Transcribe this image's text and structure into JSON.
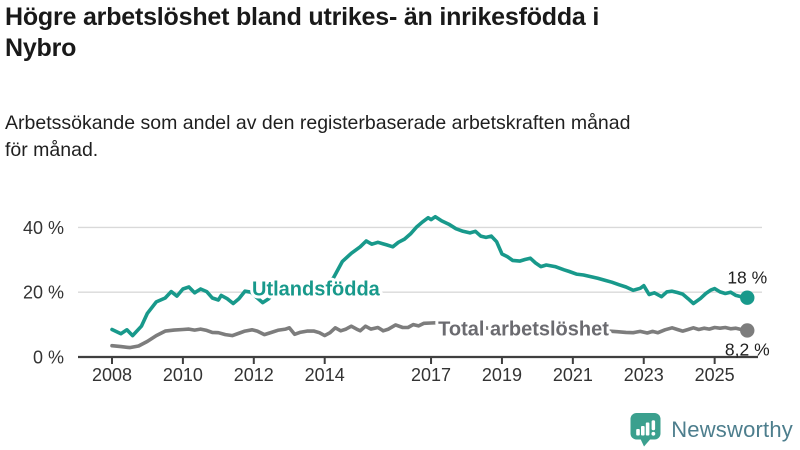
{
  "header": {
    "title_line1": "Högre arbetslöshet bland utrikes- än inrikesfödda i",
    "title_line2": "Nybro",
    "subtitle_line1": "Arbetssökande som andel av den registerbaserade arbetskraften månad",
    "subtitle_line2": "för månad."
  },
  "footer": {
    "brand": "Newsworthy",
    "logo_icon": "speech-bubble-bar-chart-icon"
  },
  "colors": {
    "teal_line": "#18998b",
    "gray_line": "#7d7d7d",
    "gray_label": "#6b6b70",
    "gridline": "#d9d9d9",
    "axis": "#3f3f3f",
    "axis_text": "#333333",
    "annotation_text": "#1f1f1f",
    "logo_teal": "#3ba08e",
    "wordmark": "#4d7e8d"
  },
  "chart_data": {
    "type": "line",
    "title": "Högre arbetslöshet bland utrikes- än inrikesfödda i Nybro",
    "subtitle": "Arbetssökande som andel av den registerbaserade arbetskraften månad för månad.",
    "unit": "%",
    "grid": "horizontal-only",
    "legend_position": "inline-labels",
    "x_axis": {
      "tick_positions": [
        2008,
        2010,
        2012,
        2014,
        2017,
        2019,
        2021,
        2023,
        2025
      ],
      "tick_labels": [
        "2008",
        "2010",
        "2012",
        "2014",
        "2017",
        "2019",
        "2021",
        "2023",
        "2025"
      ],
      "range": [
        2007.05,
        2026.3
      ]
    },
    "y_axis": {
      "tick_positions": [
        0,
        20,
        40
      ],
      "tick_labels": [
        "0 %",
        "20 %",
        "40 %"
      ],
      "range": [
        0,
        45
      ]
    },
    "series": [
      {
        "name": "Utlandsfödda",
        "color": "#18998b",
        "end_label": "18 %",
        "end_label_side": "above",
        "end_value": 18,
        "points": [
          [
            2008.0,
            8.5
          ],
          [
            2008.25,
            7.2
          ],
          [
            2008.42,
            8.4
          ],
          [
            2008.58,
            6.6
          ],
          [
            2008.83,
            9.5
          ],
          [
            2009.0,
            13.5
          ],
          [
            2009.25,
            17.0
          ],
          [
            2009.5,
            18.2
          ],
          [
            2009.67,
            20.2
          ],
          [
            2009.83,
            18.8
          ],
          [
            2010.0,
            21.0
          ],
          [
            2010.17,
            21.6
          ],
          [
            2010.33,
            19.8
          ],
          [
            2010.5,
            21.0
          ],
          [
            2010.67,
            20.2
          ],
          [
            2010.83,
            18.2
          ],
          [
            2011.0,
            17.6
          ],
          [
            2011.08,
            19.0
          ],
          [
            2011.25,
            18.0
          ],
          [
            2011.42,
            16.5
          ],
          [
            2011.58,
            18.0
          ],
          [
            2011.75,
            20.3
          ],
          [
            2011.92,
            20.0
          ],
          [
            2012.08,
            18.4
          ],
          [
            2012.25,
            16.8
          ],
          [
            2012.42,
            18.0
          ],
          [
            2012.58,
            20.0
          ],
          [
            2012.75,
            19.4
          ],
          [
            2012.92,
            21.0
          ],
          [
            2013.08,
            20.4
          ],
          [
            2013.25,
            19.6
          ],
          [
            2013.5,
            19.6
          ],
          [
            2013.75,
            20.2
          ],
          [
            2014.0,
            21.2
          ],
          [
            2014.25,
            24.5
          ],
          [
            2014.5,
            29.5
          ],
          [
            2014.75,
            32.0
          ],
          [
            2015.0,
            34.0
          ],
          [
            2015.17,
            35.8
          ],
          [
            2015.33,
            34.8
          ],
          [
            2015.5,
            35.4
          ],
          [
            2015.75,
            34.6
          ],
          [
            2015.92,
            34.0
          ],
          [
            2016.08,
            35.4
          ],
          [
            2016.25,
            36.4
          ],
          [
            2016.42,
            38.0
          ],
          [
            2016.58,
            40.0
          ],
          [
            2016.75,
            41.6
          ],
          [
            2016.92,
            43.0
          ],
          [
            2017.0,
            42.4
          ],
          [
            2017.12,
            43.3
          ],
          [
            2017.3,
            42.0
          ],
          [
            2017.5,
            41.0
          ],
          [
            2017.7,
            39.6
          ],
          [
            2017.9,
            38.8
          ],
          [
            2018.1,
            38.3
          ],
          [
            2018.25,
            38.8
          ],
          [
            2018.4,
            37.3
          ],
          [
            2018.55,
            36.9
          ],
          [
            2018.7,
            37.3
          ],
          [
            2018.85,
            35.6
          ],
          [
            2019.0,
            31.8
          ],
          [
            2019.15,
            31.0
          ],
          [
            2019.3,
            29.8
          ],
          [
            2019.5,
            29.6
          ],
          [
            2019.65,
            30.1
          ],
          [
            2019.8,
            30.5
          ],
          [
            2019.95,
            29.0
          ],
          [
            2020.1,
            27.9
          ],
          [
            2020.25,
            28.4
          ],
          [
            2020.5,
            27.9
          ],
          [
            2020.75,
            26.9
          ],
          [
            2020.9,
            26.4
          ],
          [
            2021.1,
            25.6
          ],
          [
            2021.3,
            25.3
          ],
          [
            2021.5,
            24.8
          ],
          [
            2021.7,
            24.3
          ],
          [
            2021.9,
            23.7
          ],
          [
            2022.1,
            23.1
          ],
          [
            2022.3,
            22.3
          ],
          [
            2022.5,
            21.6
          ],
          [
            2022.7,
            20.6
          ],
          [
            2022.9,
            21.2
          ],
          [
            2023.0,
            22.0
          ],
          [
            2023.15,
            19.3
          ],
          [
            2023.3,
            19.8
          ],
          [
            2023.5,
            18.6
          ],
          [
            2023.65,
            20.1
          ],
          [
            2023.8,
            20.3
          ],
          [
            2023.95,
            19.9
          ],
          [
            2024.1,
            19.4
          ],
          [
            2024.25,
            18.0
          ],
          [
            2024.4,
            16.5
          ],
          [
            2024.6,
            18.1
          ],
          [
            2024.75,
            19.6
          ],
          [
            2024.9,
            20.7
          ],
          [
            2025.0,
            21.1
          ],
          [
            2025.15,
            20.1
          ],
          [
            2025.3,
            19.6
          ],
          [
            2025.45,
            20.0
          ],
          [
            2025.6,
            19.0
          ],
          [
            2025.75,
            18.6
          ],
          [
            2025.92,
            18.3
          ]
        ]
      },
      {
        "name": "Total arbetslöshet",
        "color": "#7d7d7d",
        "end_label": "8,2 %",
        "end_label_side": "below",
        "end_value": 8.2,
        "points": [
          [
            2008.0,
            3.5
          ],
          [
            2008.25,
            3.2
          ],
          [
            2008.5,
            2.9
          ],
          [
            2008.75,
            3.4
          ],
          [
            2009.0,
            4.8
          ],
          [
            2009.25,
            6.6
          ],
          [
            2009.5,
            8.0
          ],
          [
            2009.75,
            8.3
          ],
          [
            2010.0,
            8.5
          ],
          [
            2010.17,
            8.6
          ],
          [
            2010.33,
            8.3
          ],
          [
            2010.5,
            8.6
          ],
          [
            2010.67,
            8.2
          ],
          [
            2010.83,
            7.6
          ],
          [
            2011.0,
            7.5
          ],
          [
            2011.2,
            6.9
          ],
          [
            2011.4,
            6.6
          ],
          [
            2011.6,
            7.4
          ],
          [
            2011.75,
            8.0
          ],
          [
            2011.95,
            8.4
          ],
          [
            2012.1,
            8.0
          ],
          [
            2012.3,
            6.9
          ],
          [
            2012.5,
            7.6
          ],
          [
            2012.7,
            8.3
          ],
          [
            2012.9,
            8.6
          ],
          [
            2013.0,
            9.0
          ],
          [
            2013.15,
            7.0
          ],
          [
            2013.3,
            7.6
          ],
          [
            2013.5,
            8.0
          ],
          [
            2013.7,
            8.0
          ],
          [
            2013.85,
            7.5
          ],
          [
            2014.0,
            6.6
          ],
          [
            2014.15,
            7.5
          ],
          [
            2014.3,
            9.0
          ],
          [
            2014.45,
            8.1
          ],
          [
            2014.6,
            8.6
          ],
          [
            2014.75,
            9.5
          ],
          [
            2014.9,
            8.6
          ],
          [
            2015.0,
            8.1
          ],
          [
            2015.15,
            9.5
          ],
          [
            2015.3,
            8.6
          ],
          [
            2015.5,
            9.1
          ],
          [
            2015.65,
            8.1
          ],
          [
            2015.8,
            8.6
          ],
          [
            2016.0,
            9.9
          ],
          [
            2016.2,
            9.1
          ],
          [
            2016.35,
            9.1
          ],
          [
            2016.5,
            10.0
          ],
          [
            2016.65,
            9.6
          ],
          [
            2016.8,
            10.4
          ],
          [
            2017.0,
            10.5
          ],
          [
            2017.2,
            10.6
          ],
          [
            2017.4,
            10.2
          ],
          [
            2017.6,
            10.0
          ],
          [
            2017.8,
            9.7
          ],
          [
            2018.0,
            9.5
          ],
          [
            2018.25,
            9.2
          ],
          [
            2018.5,
            9.0
          ],
          [
            2018.75,
            8.8
          ],
          [
            2019.0,
            8.6
          ],
          [
            2019.25,
            8.5
          ],
          [
            2019.5,
            8.5
          ],
          [
            2019.75,
            8.6
          ],
          [
            2020.0,
            8.9
          ],
          [
            2020.25,
            9.3
          ],
          [
            2020.5,
            9.4
          ],
          [
            2020.75,
            9.2
          ],
          [
            2021.0,
            9.0
          ],
          [
            2021.25,
            8.8
          ],
          [
            2021.5,
            8.5
          ],
          [
            2021.75,
            8.2
          ],
          [
            2022.0,
            8.0
          ],
          [
            2022.25,
            7.8
          ],
          [
            2022.5,
            7.6
          ],
          [
            2022.7,
            7.5
          ],
          [
            2022.9,
            7.9
          ],
          [
            2023.1,
            7.4
          ],
          [
            2023.25,
            7.9
          ],
          [
            2023.4,
            7.5
          ],
          [
            2023.6,
            8.4
          ],
          [
            2023.8,
            9.0
          ],
          [
            2023.95,
            8.5
          ],
          [
            2024.1,
            8.0
          ],
          [
            2024.25,
            8.5
          ],
          [
            2024.4,
            9.0
          ],
          [
            2024.55,
            8.5
          ],
          [
            2024.7,
            8.9
          ],
          [
            2024.85,
            8.6
          ],
          [
            2025.0,
            9.1
          ],
          [
            2025.15,
            8.9
          ],
          [
            2025.3,
            9.1
          ],
          [
            2025.45,
            8.7
          ],
          [
            2025.6,
            8.9
          ],
          [
            2025.75,
            8.5
          ],
          [
            2025.92,
            8.2
          ]
        ]
      }
    ],
    "series_labels": [
      {
        "text": "Utlandsfödda",
        "year": 2011.95,
        "pct": 19.0,
        "color": "#18998b"
      },
      {
        "text": "Total arbetslöshet",
        "year": 2017.2,
        "pct": 6.6,
        "color": "#6b6b70"
      }
    ]
  }
}
